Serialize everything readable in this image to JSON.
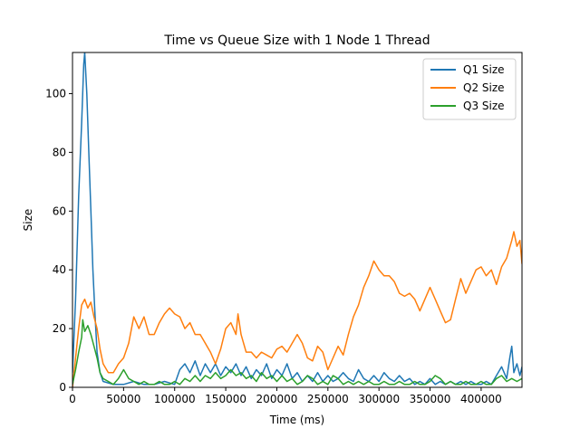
{
  "chart_data": {
    "type": "line",
    "title": "Time vs Queue Size with 1 Node 1 Thread",
    "xlabel": "Time (ms)",
    "ylabel": "Size",
    "xlim": [
      0,
      440000
    ],
    "ylim": [
      0,
      114
    ],
    "xticks": [
      0,
      50000,
      100000,
      150000,
      200000,
      250000,
      300000,
      350000,
      400000
    ],
    "yticks": [
      0,
      20,
      40,
      60,
      80,
      100
    ],
    "grid": false,
    "legend": "top-right",
    "series": [
      {
        "name": "Q1 Size",
        "color": "#1f77b4",
        "points": [
          [
            0,
            5
          ],
          [
            3000,
            30
          ],
          [
            6000,
            65
          ],
          [
            9000,
            90
          ],
          [
            11000,
            110
          ],
          [
            12000,
            114
          ],
          [
            14000,
            100
          ],
          [
            16000,
            80
          ],
          [
            18000,
            60
          ],
          [
            20000,
            40
          ],
          [
            22000,
            25
          ],
          [
            24000,
            12
          ],
          [
            27000,
            5
          ],
          [
            30000,
            2
          ],
          [
            40000,
            1
          ],
          [
            50000,
            1
          ],
          [
            60000,
            2
          ],
          [
            70000,
            1
          ],
          [
            80000,
            1
          ],
          [
            90000,
            2
          ],
          [
            100000,
            1
          ],
          [
            105000,
            6
          ],
          [
            110000,
            8
          ],
          [
            115000,
            5
          ],
          [
            120000,
            9
          ],
          [
            125000,
            4
          ],
          [
            130000,
            8
          ],
          [
            135000,
            5
          ],
          [
            140000,
            8
          ],
          [
            145000,
            4
          ],
          [
            150000,
            7
          ],
          [
            155000,
            5
          ],
          [
            160000,
            8
          ],
          [
            165000,
            4
          ],
          [
            170000,
            7
          ],
          [
            175000,
            3
          ],
          [
            180000,
            6
          ],
          [
            185000,
            4
          ],
          [
            190000,
            8
          ],
          [
            195000,
            3
          ],
          [
            200000,
            6
          ],
          [
            205000,
            4
          ],
          [
            210000,
            8
          ],
          [
            215000,
            3
          ],
          [
            220000,
            5
          ],
          [
            225000,
            2
          ],
          [
            230000,
            4
          ],
          [
            235000,
            2
          ],
          [
            240000,
            5
          ],
          [
            245000,
            2
          ],
          [
            250000,
            4
          ],
          [
            255000,
            2
          ],
          [
            260000,
            3
          ],
          [
            265000,
            5
          ],
          [
            270000,
            3
          ],
          [
            275000,
            2
          ],
          [
            280000,
            6
          ],
          [
            285000,
            3
          ],
          [
            290000,
            2
          ],
          [
            295000,
            4
          ],
          [
            300000,
            2
          ],
          [
            305000,
            5
          ],
          [
            310000,
            3
          ],
          [
            315000,
            2
          ],
          [
            320000,
            4
          ],
          [
            325000,
            2
          ],
          [
            330000,
            3
          ],
          [
            335000,
            1
          ],
          [
            340000,
            2
          ],
          [
            345000,
            1
          ],
          [
            350000,
            3
          ],
          [
            355000,
            1
          ],
          [
            360000,
            2
          ],
          [
            365000,
            1
          ],
          [
            370000,
            2
          ],
          [
            375000,
            1
          ],
          [
            380000,
            2
          ],
          [
            385000,
            1
          ],
          [
            390000,
            2
          ],
          [
            395000,
            1
          ],
          [
            400000,
            1
          ],
          [
            405000,
            2
          ],
          [
            410000,
            1
          ],
          [
            415000,
            4
          ],
          [
            420000,
            7
          ],
          [
            425000,
            3
          ],
          [
            428000,
            10
          ],
          [
            430000,
            14
          ],
          [
            432000,
            5
          ],
          [
            435000,
            8
          ],
          [
            438000,
            4
          ],
          [
            440000,
            7
          ]
        ]
      },
      {
        "name": "Q2 Size",
        "color": "#ff7f0e",
        "points": [
          [
            0,
            0
          ],
          [
            3000,
            10
          ],
          [
            6000,
            20
          ],
          [
            9000,
            28
          ],
          [
            12000,
            30
          ],
          [
            15000,
            27
          ],
          [
            18000,
            29
          ],
          [
            21000,
            24
          ],
          [
            24000,
            20
          ],
          [
            27000,
            13
          ],
          [
            30000,
            8
          ],
          [
            35000,
            5
          ],
          [
            40000,
            5
          ],
          [
            45000,
            8
          ],
          [
            50000,
            10
          ],
          [
            55000,
            15
          ],
          [
            60000,
            24
          ],
          [
            65000,
            20
          ],
          [
            70000,
            24
          ],
          [
            75000,
            18
          ],
          [
            80000,
            18
          ],
          [
            85000,
            22
          ],
          [
            90000,
            25
          ],
          [
            95000,
            27
          ],
          [
            100000,
            25
          ],
          [
            105000,
            24
          ],
          [
            110000,
            20
          ],
          [
            115000,
            22
          ],
          [
            120000,
            18
          ],
          [
            125000,
            18
          ],
          [
            130000,
            15
          ],
          [
            135000,
            12
          ],
          [
            140000,
            8
          ],
          [
            145000,
            13
          ],
          [
            150000,
            20
          ],
          [
            155000,
            22
          ],
          [
            160000,
            18
          ],
          [
            162000,
            25
          ],
          [
            165000,
            18
          ],
          [
            170000,
            12
          ],
          [
            175000,
            12
          ],
          [
            180000,
            10
          ],
          [
            185000,
            12
          ],
          [
            190000,
            11
          ],
          [
            195000,
            10
          ],
          [
            200000,
            13
          ],
          [
            205000,
            14
          ],
          [
            210000,
            12
          ],
          [
            215000,
            15
          ],
          [
            220000,
            18
          ],
          [
            225000,
            15
          ],
          [
            230000,
            10
          ],
          [
            235000,
            9
          ],
          [
            240000,
            14
          ],
          [
            245000,
            12
          ],
          [
            250000,
            6
          ],
          [
            255000,
            10
          ],
          [
            260000,
            14
          ],
          [
            265000,
            11
          ],
          [
            270000,
            18
          ],
          [
            275000,
            24
          ],
          [
            280000,
            28
          ],
          [
            285000,
            34
          ],
          [
            290000,
            38
          ],
          [
            295000,
            43
          ],
          [
            300000,
            40
          ],
          [
            305000,
            38
          ],
          [
            310000,
            38
          ],
          [
            315000,
            36
          ],
          [
            320000,
            32
          ],
          [
            325000,
            31
          ],
          [
            330000,
            32
          ],
          [
            335000,
            30
          ],
          [
            340000,
            26
          ],
          [
            345000,
            30
          ],
          [
            350000,
            34
          ],
          [
            355000,
            30
          ],
          [
            360000,
            26
          ],
          [
            365000,
            22
          ],
          [
            370000,
            23
          ],
          [
            375000,
            30
          ],
          [
            380000,
            37
          ],
          [
            385000,
            32
          ],
          [
            390000,
            36
          ],
          [
            395000,
            40
          ],
          [
            400000,
            41
          ],
          [
            405000,
            38
          ],
          [
            410000,
            40
          ],
          [
            415000,
            35
          ],
          [
            420000,
            41
          ],
          [
            425000,
            44
          ],
          [
            430000,
            50
          ],
          [
            432000,
            53
          ],
          [
            435000,
            48
          ],
          [
            438000,
            50
          ],
          [
            440000,
            42
          ]
        ]
      },
      {
        "name": "Q3 Size",
        "color": "#2ca02c",
        "points": [
          [
            0,
            1
          ],
          [
            3000,
            6
          ],
          [
            6000,
            12
          ],
          [
            9000,
            17
          ],
          [
            10000,
            23
          ],
          [
            12000,
            19
          ],
          [
            15000,
            21
          ],
          [
            18000,
            18
          ],
          [
            21000,
            14
          ],
          [
            24000,
            10
          ],
          [
            27000,
            5
          ],
          [
            30000,
            3
          ],
          [
            35000,
            2
          ],
          [
            40000,
            1
          ],
          [
            45000,
            3
          ],
          [
            50000,
            6
          ],
          [
            55000,
            3
          ],
          [
            60000,
            2
          ],
          [
            65000,
            1
          ],
          [
            70000,
            2
          ],
          [
            75000,
            1
          ],
          [
            80000,
            1
          ],
          [
            85000,
            2
          ],
          [
            90000,
            1
          ],
          [
            95000,
            1
          ],
          [
            100000,
            2
          ],
          [
            105000,
            1
          ],
          [
            110000,
            3
          ],
          [
            115000,
            2
          ],
          [
            120000,
            4
          ],
          [
            125000,
            2
          ],
          [
            130000,
            4
          ],
          [
            135000,
            3
          ],
          [
            140000,
            5
          ],
          [
            145000,
            3
          ],
          [
            150000,
            4
          ],
          [
            155000,
            6
          ],
          [
            160000,
            4
          ],
          [
            165000,
            5
          ],
          [
            170000,
            3
          ],
          [
            175000,
            4
          ],
          [
            180000,
            2
          ],
          [
            185000,
            5
          ],
          [
            190000,
            3
          ],
          [
            195000,
            4
          ],
          [
            200000,
            2
          ],
          [
            205000,
            4
          ],
          [
            210000,
            2
          ],
          [
            215000,
            3
          ],
          [
            220000,
            1
          ],
          [
            225000,
            2
          ],
          [
            230000,
            4
          ],
          [
            235000,
            3
          ],
          [
            240000,
            1
          ],
          [
            245000,
            2
          ],
          [
            250000,
            1
          ],
          [
            255000,
            4
          ],
          [
            260000,
            3
          ],
          [
            265000,
            1
          ],
          [
            270000,
            2
          ],
          [
            275000,
            1
          ],
          [
            280000,
            2
          ],
          [
            285000,
            1
          ],
          [
            290000,
            2
          ],
          [
            295000,
            1
          ],
          [
            300000,
            1
          ],
          [
            305000,
            2
          ],
          [
            310000,
            1
          ],
          [
            315000,
            1
          ],
          [
            320000,
            2
          ],
          [
            325000,
            1
          ],
          [
            330000,
            1
          ],
          [
            335000,
            2
          ],
          [
            340000,
            1
          ],
          [
            345000,
            1
          ],
          [
            350000,
            2
          ],
          [
            355000,
            4
          ],
          [
            360000,
            3
          ],
          [
            365000,
            1
          ],
          [
            370000,
            2
          ],
          [
            375000,
            1
          ],
          [
            380000,
            1
          ],
          [
            385000,
            2
          ],
          [
            390000,
            1
          ],
          [
            395000,
            1
          ],
          [
            400000,
            2
          ],
          [
            405000,
            1
          ],
          [
            410000,
            1
          ],
          [
            415000,
            3
          ],
          [
            420000,
            4
          ],
          [
            425000,
            2
          ],
          [
            430000,
            3
          ],
          [
            435000,
            2
          ],
          [
            440000,
            3
          ]
        ]
      }
    ]
  }
}
